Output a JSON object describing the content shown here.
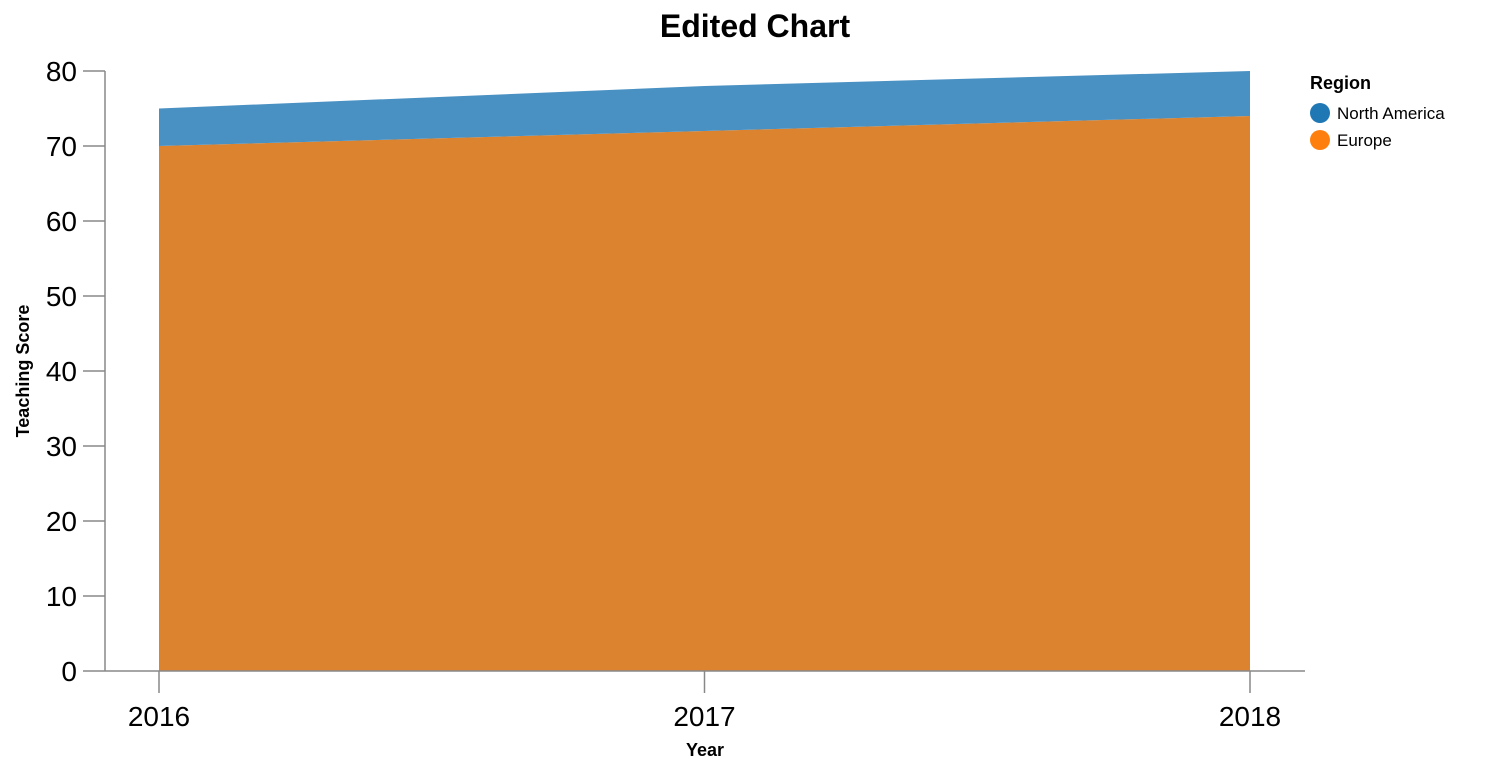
{
  "chart_data": {
    "type": "area",
    "stacked": true,
    "title": "Edited Chart",
    "xlabel": "Year",
    "ylabel": "Teaching Score",
    "x": [
      "2016",
      "2017",
      "2018"
    ],
    "ylim": [
      0,
      80
    ],
    "yticks": [
      0,
      10,
      20,
      30,
      40,
      50,
      60,
      70,
      80
    ],
    "grid": false,
    "legend": {
      "title": "Region",
      "placement": "right"
    },
    "series": [
      {
        "name": "Europe",
        "color": "#dc832f",
        "legend_color": "#ff7f0e",
        "values": [
          70,
          72,
          74
        ]
      },
      {
        "name": "North America",
        "color": "#4a91c3",
        "legend_color": "#1f77b4",
        "values": [
          5,
          6,
          6
        ]
      }
    ]
  }
}
